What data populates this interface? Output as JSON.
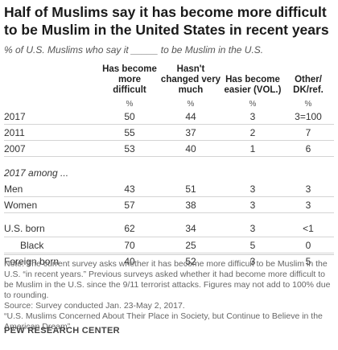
{
  "title": "Half of Muslims say it has become more difficult to be Muslim in the United States in recent years",
  "subtitle": "% of U.S. Muslims who say it _____ to be Muslim in the U.S.",
  "chart_data": {
    "type": "table",
    "columns": [
      "Has become more difficult",
      "Hasn't changed very much",
      "Has become easier (VOL.)",
      "Other/ DK/ref."
    ],
    "unit_label": "%",
    "rows": [
      {
        "label": "2017",
        "values": [
          "50",
          "44",
          "3",
          "3=100"
        ]
      },
      {
        "label": "2011",
        "values": [
          "55",
          "37",
          "2",
          "7"
        ]
      },
      {
        "label": "2007",
        "values": [
          "53",
          "40",
          "1",
          "6"
        ]
      }
    ],
    "section_label": "2017 among ...",
    "subgroups": [
      {
        "label": "Men",
        "values": [
          "43",
          "51",
          "3",
          "3"
        ]
      },
      {
        "label": "Women",
        "values": [
          "57",
          "38",
          "3",
          "3"
        ]
      },
      {
        "label": "U.S. born",
        "values": [
          "62",
          "34",
          "3",
          "<1"
        ]
      },
      {
        "label": "Black",
        "values": [
          "70",
          "25",
          "5",
          "0"
        ]
      },
      {
        "label": "Foreign born",
        "values": [
          "40",
          "52",
          "3",
          "5"
        ]
      }
    ]
  },
  "notes": [
    "Note: The current survey asks whether it has become more difficult to be Muslim in the U.S. “in recent years.” Previous surveys asked whether it had become more difficult to be Muslim in the U.S. since the 9/11 terrorist attacks. Figures may not add to 100% due to rounding.",
    "Source: Survey conducted Jan. 23-May 2, 2017.",
    "“U.S. Muslims Concerned About Their Place in Society, but Continue to Believe in the American Dream”"
  ],
  "source_org": "PEW RESEARCH CENTER"
}
